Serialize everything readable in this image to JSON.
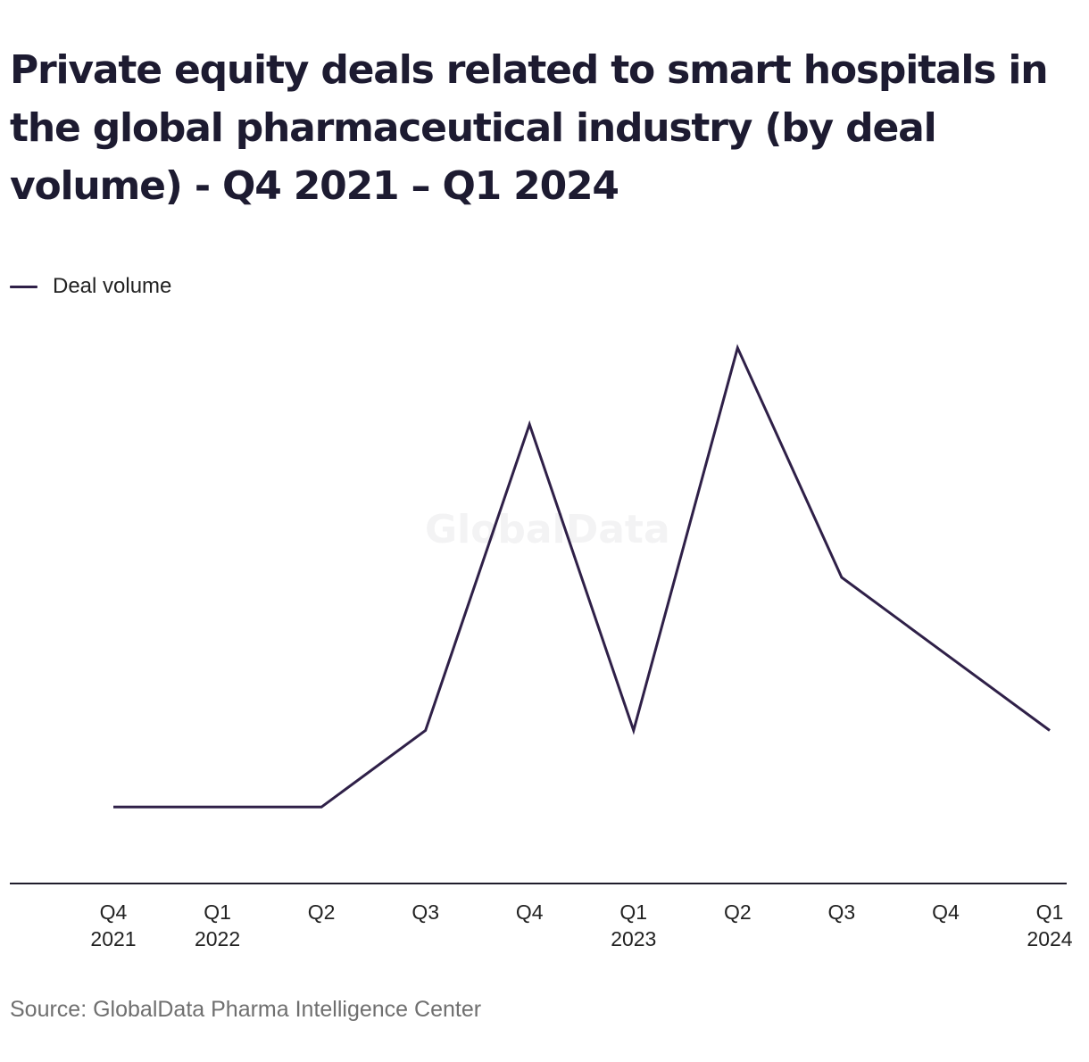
{
  "chart_data": {
    "type": "line",
    "title": "Private equity deals related to smart hospitals in the global pharmaceutical industry (by deal volume) - Q4 2021 – Q1 2024",
    "categories": [
      {
        "quarter": "Q4",
        "year": "2021"
      },
      {
        "quarter": "Q1",
        "year": "2022"
      },
      {
        "quarter": "Q2",
        "year": ""
      },
      {
        "quarter": "Q3",
        "year": ""
      },
      {
        "quarter": "Q4",
        "year": ""
      },
      {
        "quarter": "Q1",
        "year": "2023"
      },
      {
        "quarter": "Q2",
        "year": ""
      },
      {
        "quarter": "Q3",
        "year": ""
      },
      {
        "quarter": "Q4",
        "year": ""
      },
      {
        "quarter": "Q1",
        "year": "2024"
      }
    ],
    "series": [
      {
        "name": "Deal volume",
        "color": "#2f2048",
        "values": [
          1,
          1,
          1,
          2,
          6,
          2,
          7,
          4,
          3,
          2
        ]
      }
    ],
    "ylim": [
      0,
      8
    ],
    "grid": false,
    "legend": "top-left",
    "watermark": "GlobalData",
    "source": "Source: GlobalData Pharma Intelligence Center"
  }
}
